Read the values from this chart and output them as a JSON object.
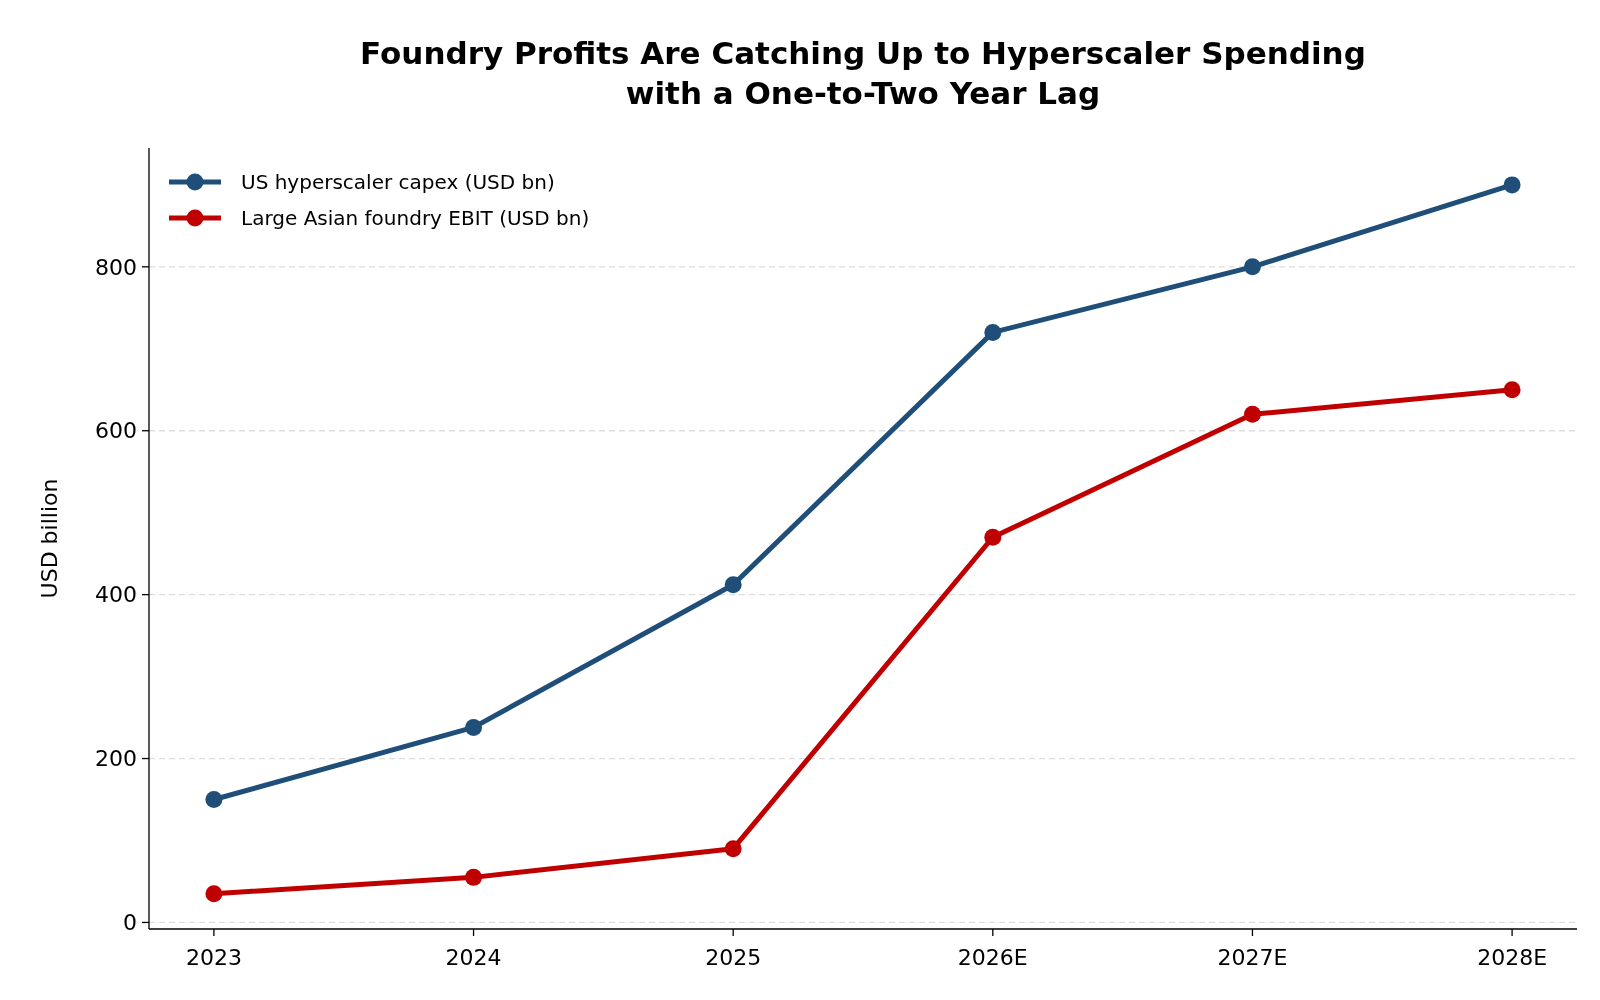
{
  "chart_data": {
    "type": "line",
    "title": "Foundry Profits Are Catching Up to Hyperscaler Spending\nwith a One-to-Two Year Lag",
    "ylabel": "USD billion",
    "categories": [
      "2023",
      "2024",
      "2025",
      "2026E",
      "2027E",
      "2028E"
    ],
    "series": [
      {
        "name": "US hyperscaler capex (USD bn)",
        "color": "#1f4e79",
        "values": [
          150,
          238,
          412,
          720,
          800,
          900
        ]
      },
      {
        "name": "Large Asian foundry EBIT (USD bn)",
        "color": "#c00000",
        "values": [
          35,
          55,
          90,
          470,
          620,
          650
        ]
      }
    ],
    "ylim": [
      -8,
      945
    ],
    "yticks": [
      0,
      200,
      400,
      600,
      800
    ],
    "grid": "y",
    "legend": "top left",
    "marker": "circle",
    "line_style": "solid"
  }
}
